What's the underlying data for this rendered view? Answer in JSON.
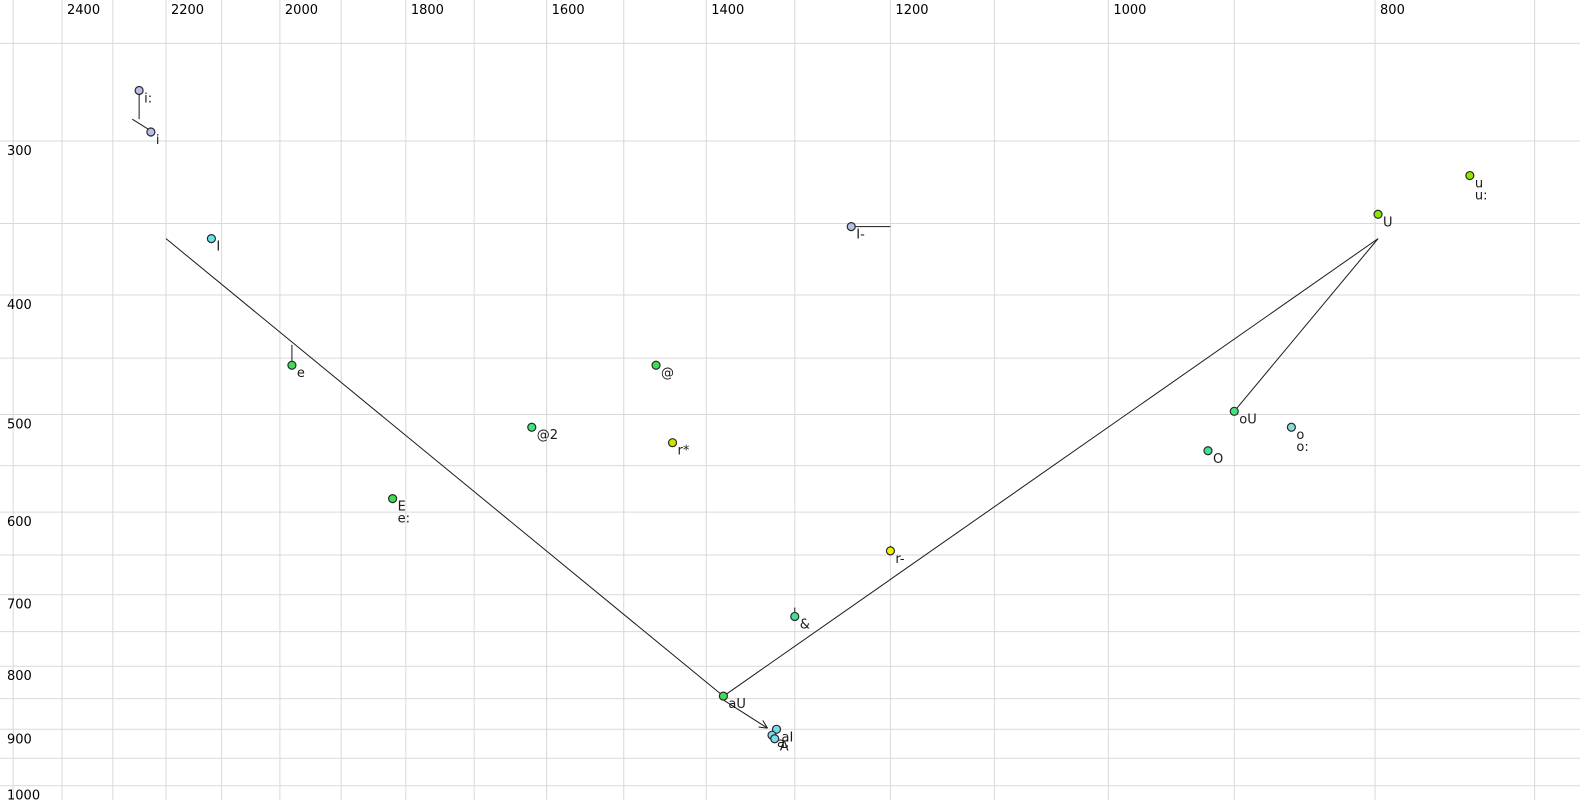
{
  "chart_data": {
    "type": "scatter",
    "title": "",
    "description": "Vowel formant plot (F2 horizontal reversed log scale, F1 vertical log scale), ASCII-IPA vowel labels",
    "x_axis": {
      "tick_labels": [
        2400,
        2200,
        2000,
        1800,
        1600,
        1400,
        1200,
        1000,
        800
      ],
      "gridlines_hz": [
        2500,
        2400,
        2300,
        2200,
        2100,
        2000,
        1900,
        1800,
        1700,
        1600,
        1500,
        1400,
        1300,
        1200,
        1100,
        1000,
        900,
        800,
        700
      ],
      "scale": "log",
      "reversed": true,
      "visible_range_hz": [
        2530,
        675
      ]
    },
    "y_axis": {
      "tick_labels": [
        300,
        400,
        500,
        600,
        700,
        800,
        900,
        1000
      ],
      "gridlines_hz": [
        250,
        300,
        350,
        400,
        450,
        500,
        550,
        600,
        650,
        700,
        750,
        800,
        850,
        900,
        950,
        1000
      ],
      "scale": "log",
      "increases_downward": true,
      "visible_range_hz": [
        230,
        1025
      ]
    },
    "points": [
      {
        "label": "i:",
        "f2": 2250,
        "f1": 273,
        "color": "lavender",
        "secondary_labels": []
      },
      {
        "label": "i",
        "f2": 2228,
        "f1": 295,
        "color": "lavender",
        "secondary_labels": []
      },
      {
        "label": "I",
        "f2": 2118,
        "f1": 360,
        "color": "cyan",
        "secondary_labels": []
      },
      {
        "label": "I-",
        "f2": 1240,
        "f1": 352,
        "color": "lavender",
        "secondary_labels": []
      },
      {
        "label": "e",
        "f2": 1980,
        "f1": 456,
        "color": "green",
        "secondary_labels": []
      },
      {
        "label": "E",
        "f2": 1820,
        "f1": 585,
        "color": "green",
        "secondary_labels": [
          "e:"
        ]
      },
      {
        "label": "@",
        "f2": 1460,
        "f1": 456,
        "color": "green",
        "secondary_labels": []
      },
      {
        "label": "@2",
        "f2": 1620,
        "f1": 512,
        "color": "spring",
        "secondary_labels": []
      },
      {
        "label": "r*",
        "f2": 1440,
        "f1": 527,
        "color": "yellowgreen",
        "secondary_labels": []
      },
      {
        "label": "r-",
        "f2": 1200,
        "f1": 645,
        "color": "yellow",
        "secondary_labels": []
      },
      {
        "label": "&",
        "f2": 1300,
        "f1": 729,
        "color": "teal",
        "secondary_labels": []
      },
      {
        "label": "aU",
        "f2": 1380,
        "f1": 846,
        "color": "green",
        "secondary_labels": []
      },
      {
        "label": "aI",
        "f2": 1320,
        "f1": 900,
        "color": "cyan2",
        "secondary_labels": []
      },
      {
        "label": "a:",
        "f2": 1325,
        "f1": 910,
        "color": "cyan2",
        "secondary_labels": []
      },
      {
        "label": "A",
        "f2": 1322,
        "f1": 916,
        "color": "cyan2",
        "secondary_labels": []
      },
      {
        "label": "oU",
        "f2": 900,
        "f1": 497,
        "color": "spring",
        "secondary_labels": []
      },
      {
        "label": "o",
        "f2": 858,
        "f1": 512,
        "color": "cyanlight",
        "secondary_labels": [
          "o:"
        ]
      },
      {
        "label": "O",
        "f2": 920,
        "f1": 535,
        "color": "teal",
        "secondary_labels": []
      },
      {
        "label": "U",
        "f2": 798,
        "f1": 344,
        "color": "chartreuse",
        "secondary_labels": []
      },
      {
        "label": "u",
        "f2": 739,
        "f1": 320,
        "color": "chartreuse",
        "secondary_labels": [
          "u:"
        ]
      }
    ],
    "envelope_lines": [
      {
        "from": [
          2200,
          360
        ],
        "to": [
          1380,
          846
        ]
      },
      {
        "from": [
          1380,
          846
        ],
        "to": [
          798,
          360
        ]
      },
      {
        "from": [
          900,
          497
        ],
        "to": [
          798,
          360
        ]
      }
    ],
    "glide_segments": [
      {
        "from": [
          2250,
          274
        ],
        "to": [
          2250,
          288
        ]
      },
      {
        "from": [
          2263,
          288
        ],
        "to": [
          2230,
          294
        ]
      },
      {
        "from": [
          1980,
          439
        ],
        "to": [
          1980,
          456
        ]
      },
      {
        "from": [
          1200,
          639
        ],
        "to": [
          1200,
          648
        ]
      },
      {
        "from": [
          1300,
          717
        ],
        "to": [
          1300,
          726
        ]
      },
      {
        "from": [
          1240,
          352
        ],
        "to": [
          1200,
          352
        ]
      }
    ],
    "arrow": {
      "from": [
        1379,
        853
      ],
      "to": [
        1330,
        898
      ]
    },
    "colors": {
      "lavender": "#b9bde9",
      "cyan": "#60e7e7",
      "cyan2": "#76dcee",
      "cyanlight": "#8cd9d9",
      "green": "#3fdc55",
      "spring": "#3fe47e",
      "teal": "#43df92",
      "chartreuse": "#8ce600",
      "yellowgreen": "#cfe000",
      "yellow": "#f0f000",
      "point_stroke": "#2a2a2a",
      "grid": "#d9d9d9",
      "line": "#1a1a1a",
      "label": "#1a1a1a"
    }
  }
}
